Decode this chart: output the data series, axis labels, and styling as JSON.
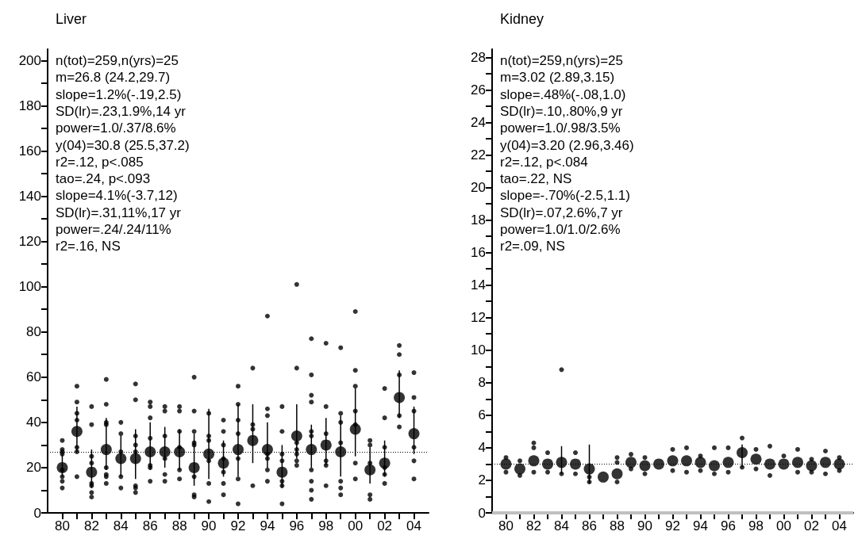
{
  "chart_data": [
    {
      "type": "scatter",
      "title": "Liver",
      "marker": "circle",
      "annotations": [
        "n(tot)=259,n(yrs)=25",
        "m=26.8 (24.2,29.7)",
        "slope=1.2%(-.19,2.5)",
        "SD(lr)=.23,1.9%,14 yr",
        "power=1.0/.37/8.6%",
        "y(04)=30.8 (25.5,37.2)",
        "r2=.12, p<.085",
        "tao=.24, p<.093",
        "slope=4.1%(-3.7,12)",
        "SD(lr)=.31,11%,17 yr",
        "power=.24/.24/11%",
        "r2=.16, NS"
      ],
      "xlim": [
        1979,
        2005
      ],
      "xticks": [
        {
          "value": 1980,
          "label": "80"
        },
        {
          "value": 1981,
          "label": null
        },
        {
          "value": 1982,
          "label": "82"
        },
        {
          "value": 1983,
          "label": null
        },
        {
          "value": 1984,
          "label": "84"
        },
        {
          "value": 1985,
          "label": null
        },
        {
          "value": 1986,
          "label": "86"
        },
        {
          "value": 1987,
          "label": null
        },
        {
          "value": 1988,
          "label": "88"
        },
        {
          "value": 1989,
          "label": null
        },
        {
          "value": 1990,
          "label": "90"
        },
        {
          "value": 1991,
          "label": null
        },
        {
          "value": 1992,
          "label": "92"
        },
        {
          "value": 1993,
          "label": null
        },
        {
          "value": 1994,
          "label": "94"
        },
        {
          "value": 1995,
          "label": null
        },
        {
          "value": 1996,
          "label": "96"
        },
        {
          "value": 1997,
          "label": null
        },
        {
          "value": 1998,
          "label": "98"
        },
        {
          "value": 1999,
          "label": null
        },
        {
          "value": 2000,
          "label": "00"
        },
        {
          "value": 2001,
          "label": null
        },
        {
          "value": 2002,
          "label": "02"
        },
        {
          "value": 2003,
          "label": null
        },
        {
          "value": 2004,
          "label": "04"
        }
      ],
      "ylim": [
        0,
        205
      ],
      "yticks": [
        0,
        {
          "value": 10,
          "label": null
        },
        20,
        {
          "value": 30,
          "label": null
        },
        40,
        {
          "value": 50,
          "label": null
        },
        60,
        {
          "value": 70,
          "label": null
        },
        80,
        {
          "value": 90,
          "label": null
        },
        100,
        {
          "value": 110,
          "label": null
        },
        120,
        {
          "value": 130,
          "label": null
        },
        140,
        {
          "value": 150,
          "label": null
        },
        160,
        {
          "value": 170,
          "label": null
        },
        180,
        {
          "value": 190,
          "label": null
        },
        200
      ],
      "ref_lines": [
        {
          "axis": "y",
          "value": 26.8,
          "line_style": "dotted",
          "color": "#000000"
        }
      ],
      "series": [
        {
          "type": "scatter",
          "color": "#000000",
          "x": [
            1980,
            1980,
            1980,
            1980,
            1980,
            1980,
            1980,
            1980,
            1981,
            1981,
            1981,
            1981,
            1981,
            1981,
            1981,
            1982,
            1982,
            1982,
            1982,
            1982,
            1982,
            1982,
            1982,
            1983,
            1983,
            1983,
            1983,
            1983,
            1983,
            1983,
            1983,
            1984,
            1984,
            1984,
            1984,
            1984,
            1985,
            1985,
            1985,
            1985,
            1985,
            1985,
            1985,
            1985,
            1986,
            1986,
            1986,
            1986,
            1986,
            1986,
            1986,
            1987,
            1987,
            1987,
            1987,
            1987,
            1987,
            1988,
            1988,
            1988,
            1988,
            1988,
            1988,
            1989,
            1989,
            1989,
            1989,
            1989,
            1989,
            1989,
            1989,
            1990,
            1990,
            1990,
            1990,
            1990,
            1990,
            1991,
            1991,
            1991,
            1991,
            1991,
            1991,
            1991,
            1992,
            1992,
            1992,
            1992,
            1992,
            1992,
            1992,
            1993,
            1993,
            1993,
            1993,
            1994,
            1994,
            1994,
            1994,
            1994,
            1994,
            1994,
            1995,
            1995,
            1995,
            1995,
            1995,
            1995,
            1995,
            1996,
            1996,
            1996,
            1996,
            1996,
            1996,
            1996,
            1997,
            1997,
            1997,
            1997,
            1997,
            1997,
            1997,
            1997,
            1997,
            1997,
            1998,
            1998,
            1998,
            1998,
            1998,
            1998,
            1999,
            1999,
            1999,
            1999,
            1999,
            1999,
            1999,
            2000,
            2000,
            2000,
            2000,
            2000,
            2000,
            2000,
            2001,
            2001,
            2001,
            2001,
            2001,
            2002,
            2002,
            2002,
            2002,
            2002,
            2002,
            2003,
            2003,
            2003,
            2003,
            2003,
            2004,
            2004,
            2004,
            2004,
            2004,
            2004
          ],
          "values": [
            32,
            28,
            27,
            26,
            19,
            16,
            14,
            11,
            56,
            49,
            44,
            41,
            29,
            27,
            16,
            47,
            39,
            25,
            22,
            13,
            12,
            9,
            7,
            59,
            48,
            40,
            39,
            20,
            17,
            16,
            13,
            40,
            35,
            27,
            16,
            11,
            57,
            50,
            34,
            30,
            27,
            12,
            11,
            9,
            49,
            47,
            42,
            33,
            21,
            20,
            14,
            47,
            45,
            34,
            24,
            17,
            14,
            47,
            45,
            36,
            29,
            19,
            15,
            60,
            45,
            36,
            31,
            30,
            16,
            8,
            7,
            44,
            34,
            32,
            23,
            13,
            5,
            41,
            36,
            30,
            24,
            18,
            13,
            8,
            56,
            48,
            41,
            35,
            24,
            15,
            4,
            64,
            39,
            37,
            12,
            87,
            46,
            43,
            26,
            24,
            19,
            14,
            47,
            36,
            26,
            23,
            14,
            12,
            4,
            101,
            64,
            31,
            28,
            26,
            23,
            21,
            77,
            61,
            52,
            49,
            36,
            34,
            19,
            14,
            10,
            6,
            75,
            47,
            35,
            23,
            21,
            12,
            73,
            44,
            40,
            31,
            14,
            11,
            8,
            89,
            63,
            56,
            45,
            39,
            22,
            15,
            32,
            30,
            22,
            8,
            6,
            55,
            42,
            29,
            20,
            17,
            13,
            74,
            70,
            61,
            43,
            38,
            62,
            51,
            45,
            29,
            23,
            15
          ]
        },
        {
          "type": "scatter",
          "color": "#000000",
          "x": [
            1980,
            1981,
            1982,
            1983,
            1984,
            1985,
            1986,
            1987,
            1988,
            1989,
            1990,
            1991,
            1992,
            1993,
            1994,
            1995,
            1996,
            1997,
            1998,
            1999,
            2000,
            2001,
            2002,
            2003,
            2004
          ],
          "values": [
            20,
            36,
            18,
            28,
            24,
            24,
            27,
            27,
            27,
            20,
            26,
            22,
            28,
            32,
            28,
            18,
            34,
            28,
            30,
            27,
            37,
            19,
            22,
            51,
            35
          ],
          "errors": [
            [
              16,
              26
            ],
            [
              27,
              47
            ],
            [
              11,
              28
            ],
            [
              19,
              42
            ],
            [
              16,
              34
            ],
            [
              15,
              37
            ],
            [
              19,
              40
            ],
            [
              20,
              38
            ],
            [
              19,
              37
            ],
            [
              12,
              35
            ],
            [
              15,
              46
            ],
            [
              16,
              32
            ],
            [
              16,
              48
            ],
            [
              22,
              48
            ],
            [
              20,
              40
            ],
            [
              11,
              30
            ],
            [
              24,
              48
            ],
            [
              20,
              39
            ],
            [
              21,
              42
            ],
            [
              16,
              43
            ],
            [
              25,
              55
            ],
            [
              13,
              29
            ],
            [
              16,
              32
            ],
            [
              42,
              63
            ],
            [
              26,
              47
            ]
          ]
        }
      ]
    },
    {
      "type": "scatter",
      "title": "Kidney",
      "marker": "circle",
      "annotations": [
        "n(tot)=259,n(yrs)=25",
        "m=3.02 (2.89,3.15)",
        "slope=.48%(-.08,1.0)",
        "SD(lr)=.10,.80%,9 yr",
        "power=1.0/.98/3.5%",
        "y(04)=3.20 (2.96,3.46)",
        "r2=.12, p<.084",
        "tao=.22, NS",
        "slope=-.70%(-2.5,1.1)",
        "SD(lr)=.07,2.6%,7 yr",
        "power=1.0/1.0/2.6%",
        "r2=.09, NS"
      ],
      "xlim": [
        1979,
        2005
      ],
      "xticks": [
        {
          "value": 1980,
          "label": "80"
        },
        {
          "value": 1981,
          "label": null
        },
        {
          "value": 1982,
          "label": "82"
        },
        {
          "value": 1983,
          "label": null
        },
        {
          "value": 1984,
          "label": "84"
        },
        {
          "value": 1985,
          "label": null
        },
        {
          "value": 1986,
          "label": "86"
        },
        {
          "value": 1987,
          "label": null
        },
        {
          "value": 1988,
          "label": "88"
        },
        {
          "value": 1989,
          "label": null
        },
        {
          "value": 1990,
          "label": "90"
        },
        {
          "value": 1991,
          "label": null
        },
        {
          "value": 1992,
          "label": "92"
        },
        {
          "value": 1993,
          "label": null
        },
        {
          "value": 1994,
          "label": "94"
        },
        {
          "value": 1995,
          "label": null
        },
        {
          "value": 1996,
          "label": "96"
        },
        {
          "value": 1997,
          "label": null
        },
        {
          "value": 1998,
          "label": "98"
        },
        {
          "value": 1999,
          "label": null
        },
        {
          "value": 2000,
          "label": "00"
        },
        {
          "value": 2001,
          "label": null
        },
        {
          "value": 2002,
          "label": "02"
        },
        {
          "value": 2003,
          "label": null
        },
        {
          "value": 2004,
          "label": "04"
        }
      ],
      "ylim": [
        0,
        28.5
      ],
      "yticks": [
        0,
        {
          "value": 1,
          "label": null
        },
        2,
        {
          "value": 3,
          "label": null
        },
        4,
        {
          "value": 5,
          "label": null
        },
        6,
        {
          "value": 7,
          "label": null
        },
        8,
        {
          "value": 9,
          "label": null
        },
        10,
        {
          "value": 11,
          "label": null
        },
        12,
        {
          "value": 13,
          "label": null
        },
        14,
        {
          "value": 15,
          "label": null
        },
        16,
        {
          "value": 17,
          "label": null
        },
        18,
        {
          "value": 19,
          "label": null
        },
        20,
        {
          "value": 21,
          "label": null
        },
        22,
        {
          "value": 23,
          "label": null
        },
        24,
        {
          "value": 25,
          "label": null
        },
        26,
        {
          "value": 27,
          "label": null
        },
        28
      ],
      "ref_lines": [
        {
          "axis": "y",
          "value": 3.02,
          "line_style": "dotted",
          "color": "#000000"
        },
        {
          "axis": "y",
          "value": 0,
          "line_style": "solid",
          "color": "#c0c0c0"
        }
      ],
      "series": [
        {
          "type": "scatter",
          "color": "#000000",
          "x": [
            1980,
            1980,
            1981,
            1981,
            1982,
            1982,
            1982,
            1983,
            1983,
            1984,
            1984,
            1985,
            1985,
            1986,
            1986,
            1988,
            1988,
            1988,
            1989,
            1989,
            1990,
            1990,
            1992,
            1992,
            1993,
            1993,
            1994,
            1994,
            1995,
            1995,
            1996,
            1996,
            1997,
            1997,
            1998,
            1998,
            1999,
            1999,
            2000,
            2001,
            2001,
            2002,
            2002,
            2003,
            2003,
            2004,
            2004
          ],
          "values": [
            3.4,
            2.5,
            3.2,
            2.3,
            4.3,
            4.0,
            2.5,
            3.7,
            2.5,
            8.8,
            2.4,
            3.7,
            2.4,
            2.2,
            1.9,
            3.4,
            3.1,
            1.9,
            3.6,
            2.7,
            3.4,
            2.4,
            3.9,
            2.6,
            4.0,
            2.5,
            3.5,
            2.6,
            4.0,
            2.4,
            4.0,
            2.5,
            4.6,
            2.8,
            3.9,
            2.7,
            4.1,
            2.3,
            3.5,
            3.9,
            2.5,
            3.3,
            2.5,
            3.8,
            2.4,
            3.4,
            2.6
          ]
        },
        {
          "type": "scatter",
          "color": "#000000",
          "x": [
            1980,
            1981,
            1982,
            1983,
            1984,
            1985,
            1986,
            1987,
            1988,
            1989,
            1990,
            1991,
            1992,
            1993,
            1994,
            1995,
            1996,
            1997,
            1998,
            1999,
            2000,
            2001,
            2002,
            2003,
            2004
          ],
          "values": [
            3.0,
            2.7,
            3.2,
            3.0,
            3.1,
            3.0,
            2.7,
            2.2,
            2.4,
            3.1,
            2.9,
            3.0,
            3.2,
            3.2,
            3.1,
            2.9,
            3.1,
            3.7,
            3.3,
            3.0,
            3.0,
            3.1,
            2.9,
            3.1,
            3.0
          ],
          "errors": [
            null,
            null,
            null,
            null,
            [
              2.4,
              4.1
            ],
            null,
            [
              1.8,
              4.2
            ],
            null,
            null,
            null,
            null,
            null,
            null,
            null,
            null,
            null,
            null,
            [
              2.8,
              4.2
            ],
            null,
            null,
            null,
            null,
            null,
            null,
            null
          ]
        }
      ]
    }
  ]
}
